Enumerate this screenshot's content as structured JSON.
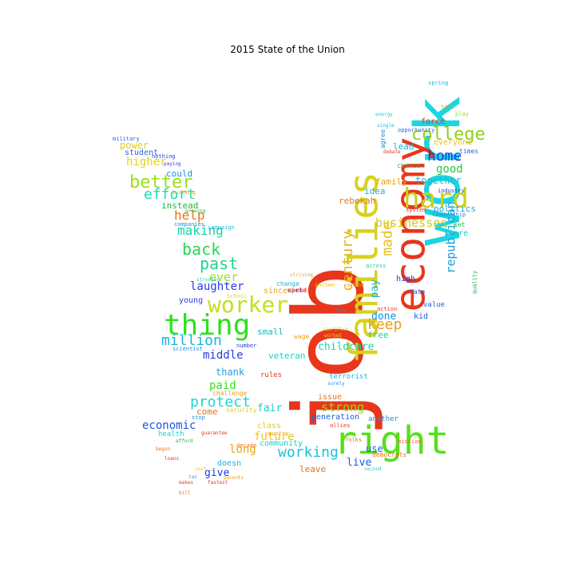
{
  "title": "2015 State of the Union",
  "words": [
    {
      "text": "job",
      "color": "#e8361c"
    },
    {
      "text": "work",
      "color": "#1ad6e0"
    },
    {
      "text": "families",
      "color": "#d7d21c"
    },
    {
      "text": "economy",
      "color": "#e8361c"
    },
    {
      "text": "right",
      "color": "#55e01c"
    },
    {
      "text": "hard",
      "color": "#c8d21c"
    },
    {
      "text": "thing",
      "color": "#2ee01c"
    },
    {
      "text": "worker",
      "color": "#c2e01c"
    },
    {
      "text": "college",
      "color": "#8cd21c"
    },
    {
      "text": "better",
      "color": "#9ae01c"
    },
    {
      "text": "effort",
      "color": "#1ae0b0"
    },
    {
      "text": "back",
      "color": "#28d85a"
    },
    {
      "text": "past",
      "color": "#1ed68a"
    },
    {
      "text": "help",
      "color": "#e8741c"
    },
    {
      "text": "million",
      "color": "#1ab4e0"
    },
    {
      "text": "protect",
      "color": "#1ad6d6"
    },
    {
      "text": "century",
      "color": "#e8b01c"
    },
    {
      "text": "keep",
      "color": "#e8a01c"
    },
    {
      "text": "home",
      "color": "#1c38e8"
    },
    {
      "text": "businesses",
      "color": "#d2c81c"
    },
    {
      "text": "strong",
      "color": "#8ae01c"
    },
    {
      "text": "working",
      "color": "#1ac2e0"
    },
    {
      "text": "economic",
      "color": "#1c56e0"
    },
    {
      "text": "future",
      "color": "#e8c81c"
    },
    {
      "text": "higher",
      "color": "#e8d21c"
    },
    {
      "text": "making",
      "color": "#1ad0a6"
    },
    {
      "text": "laughter",
      "color": "#2a3ae8"
    },
    {
      "text": "good",
      "color": "#22c83a"
    },
    {
      "text": "republican",
      "color": "#1a9ee0"
    },
    {
      "text": "childcare",
      "color": "#1ad6a2"
    },
    {
      "text": "middle",
      "color": "#2a3ae8"
    },
    {
      "text": "power",
      "color": "#e8c81c"
    },
    {
      "text": "together",
      "color": "#1ab8d6"
    },
    {
      "text": "ever",
      "color": "#9ae01c"
    },
    {
      "text": "paid",
      "color": "#3ae01c"
    },
    {
      "text": "pay",
      "color": "#1ab8e0"
    },
    {
      "text": "done",
      "color": "#1a8ee0"
    },
    {
      "text": "made",
      "color": "#e8c01c"
    },
    {
      "text": "live",
      "color": "#1a5ae8"
    },
    {
      "text": "give",
      "color": "#1a3ae8"
    },
    {
      "text": "leave",
      "color": "#e8741c"
    },
    {
      "text": "use",
      "color": "#1a64e0"
    },
    {
      "text": "long",
      "color": "#e8a81c"
    },
    {
      "text": "come",
      "color": "#e8741c"
    },
    {
      "text": "fair",
      "color": "#1ad0c8"
    },
    {
      "text": "thank",
      "color": "#2a9ee0"
    },
    {
      "text": "family",
      "color": "#e8a01c"
    },
    {
      "text": "rebekah",
      "color": "#e8741c"
    },
    {
      "text": "idea",
      "color": "#1ab4d6"
    },
    {
      "text": "politics",
      "color": "#1aa8e0"
    },
    {
      "text": "share",
      "color": "#1ac8c8"
    },
    {
      "text": "everyone",
      "color": "#e8c81c"
    },
    {
      "text": "lead",
      "color": "#1ab4e0"
    },
    {
      "text": "instead",
      "color": "#22b43a"
    },
    {
      "text": "could",
      "color": "#1a8ee0"
    },
    {
      "text": "free",
      "color": "#1ad0a6"
    },
    {
      "text": "veteran",
      "color": "#1ad0c8"
    },
    {
      "text": "since",
      "color": "#e8a01c"
    },
    {
      "text": "small",
      "color": "#22b4c8"
    },
    {
      "text": "young",
      "color": "#2a3ae8"
    },
    {
      "text": "issue",
      "color": "#e8741c"
    },
    {
      "text": "generation",
      "color": "#1a5ae8"
    },
    {
      "text": "student",
      "color": "#2a6ae0"
    },
    {
      "text": "kid",
      "color": "#1a5ae8"
    },
    {
      "text": "class",
      "color": "#e8c81c"
    },
    {
      "text": "community",
      "color": "#1ad0c8"
    },
    {
      "text": "another",
      "color": "#1a8ee0"
    },
    {
      "text": "force",
      "color": "#e8361c"
    },
    {
      "text": "doesn",
      "color": "#1ab4e0"
    },
    {
      "text": "health",
      "color": "#22d0c8"
    },
    {
      "text": "terrorist",
      "color": "#1ab4e0"
    },
    {
      "text": "high",
      "color": "#2a3ae8"
    },
    {
      "text": "security",
      "color": "#e8c81c"
    },
    {
      "text": "chance",
      "color": "#22b43a"
    },
    {
      "text": "value",
      "color": "#1a6ae0"
    },
    {
      "text": "set",
      "color": "#22b43a"
    },
    {
      "text": "rate",
      "color": "#1a5ae8"
    },
    {
      "text": "rules",
      "color": "#e8361c"
    },
    {
      "text": "agree",
      "color": "#1a8ee0"
    },
    {
      "text": "leadership",
      "color": "#1a8ee0"
    },
    {
      "text": "change",
      "color": "#1ab4e0"
    },
    {
      "text": "wage",
      "color": "#e8a01c"
    },
    {
      "text": "democrats",
      "color": "#e8741c"
    },
    {
      "text": "times",
      "color": "#1a6ae0"
    },
    {
      "text": "spring",
      "color": "#1ab4e0"
    },
    {
      "text": "told",
      "color": "#e8a01c"
    },
    {
      "text": "play",
      "color": "#8ae01c"
    },
    {
      "text": "military",
      "color": "#2a6ae0"
    },
    {
      "text": "nothing",
      "color": "#2a3ae8"
    },
    {
      "text": "system",
      "color": "#e8361c"
    },
    {
      "text": "law",
      "color": "#1a8ee0"
    },
    {
      "text": "school",
      "color": "#e8d21c"
    },
    {
      "text": "challenge",
      "color": "#e8a01c"
    },
    {
      "text": "scientist",
      "color": "#1a8ee0"
    },
    {
      "text": "campaign",
      "color": "#1ac2e0"
    },
    {
      "text": "folks",
      "color": "#e8741c"
    },
    {
      "text": "industry",
      "color": "#2a3ae8"
    },
    {
      "text": "quality",
      "color": "#22b43a"
    },
    {
      "text": "allies",
      "color": "#e8361c"
    },
    {
      "text": "mission",
      "color": "#e8741c"
    },
    {
      "text": "stop",
      "color": "#1a8ee0"
    },
    {
      "text": "decade",
      "color": "#e8741c"
    },
    {
      "text": "action",
      "color": "#e8361c"
    },
    {
      "text": "number",
      "color": "#2a3ae8"
    },
    {
      "text": "country",
      "color": "#e8a01c"
    },
    {
      "text": "income",
      "color": "#e8c81c"
    },
    {
      "text": "across",
      "color": "#1ad0a6"
    },
    {
      "text": "opportunity",
      "color": "#2a6ae0"
    },
    {
      "text": "companies",
      "color": "#1a8ee0"
    },
    {
      "text": "building",
      "color": "#e8a01c"
    },
    {
      "text": "paying",
      "color": "#2a3ae8"
    },
    {
      "text": "guarantee",
      "color": "#e8361c"
    },
    {
      "text": "afford",
      "color": "#22b43a"
    },
    {
      "text": "cost",
      "color": "#e8c81c"
    },
    {
      "text": "tax",
      "color": "#1ab4e0"
    },
    {
      "text": "bill",
      "color": "#e8741c"
    },
    {
      "text": "makes",
      "color": "#e8361c"
    },
    {
      "text": "loans",
      "color": "#e8361c"
    },
    {
      "text": "fastest",
      "color": "#e8361c"
    },
    {
      "text": "parents",
      "color": "#e8a01c"
    },
    {
      "text": "striving",
      "color": "#e8a01c"
    },
    {
      "text": "sacrifice",
      "color": "#e8c81c"
    },
    {
      "text": "worked",
      "color": "#e8c81c"
    },
    {
      "text": "surely",
      "color": "#1a8ee0"
    },
    {
      "text": "second",
      "color": "#1ad0c8"
    },
    {
      "text": "defend",
      "color": "#e8a01c"
    },
    {
      "text": "begun",
      "color": "#e8741c"
    },
    {
      "text": "stronger",
      "color": "#1ad0a6"
    },
    {
      "text": "growing",
      "color": "#22b43a"
    },
    {
      "text": "single",
      "color": "#1ab4e0"
    },
    {
      "text": "debate",
      "color": "#e8361c"
    },
    {
      "text": "energy",
      "color": "#1ad0c8"
    },
    {
      "text": "spend",
      "color": "#2a3ae8"
    },
    {
      "text": "world",
      "color": "#e8741c"
    },
    {
      "text": "certain",
      "color": "#e8361c"
    }
  ]
}
